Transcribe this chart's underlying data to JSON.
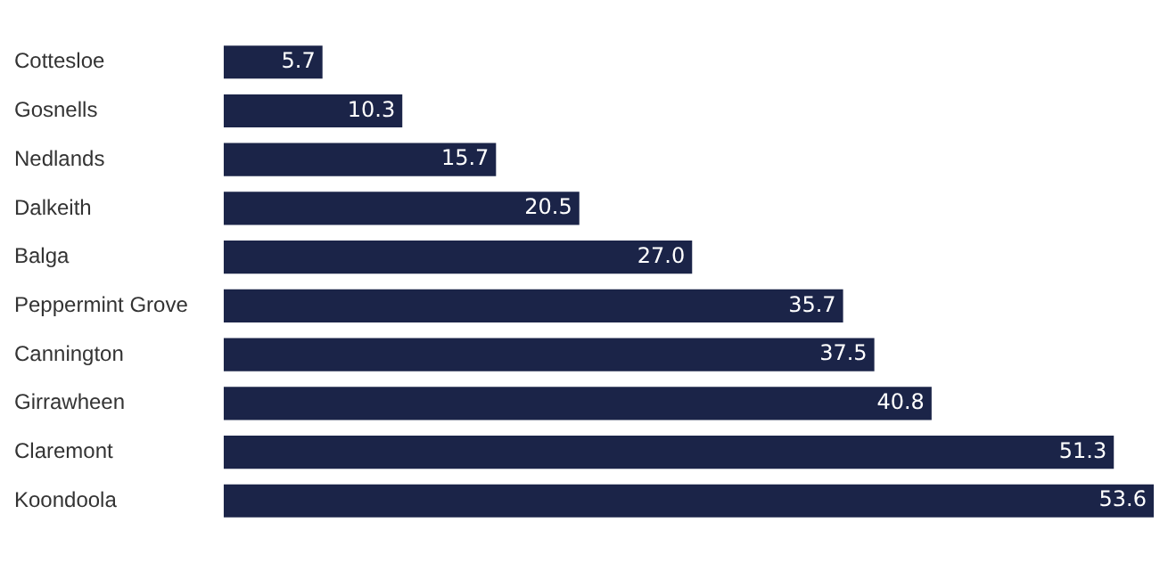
{
  "chart_data": {
    "type": "bar",
    "orientation": "horizontal",
    "categories": [
      "Cottesloe",
      "Gosnells",
      "Nedlands",
      "Dalkeith",
      "Balga",
      "Peppermint Grove",
      "Cannington",
      "Girrawheen",
      "Claremont",
      "Koondoola"
    ],
    "values": [
      5.7,
      10.3,
      15.7,
      20.5,
      27.0,
      35.7,
      37.5,
      40.8,
      51.3,
      53.6
    ],
    "value_labels": [
      "5.7",
      "10.3",
      "15.7",
      "20.5",
      "27.0",
      "35.7",
      "37.5",
      "40.8",
      "51.3",
      "53.6"
    ],
    "color": "#1b2448",
    "data_labels": true,
    "legend": false
  }
}
